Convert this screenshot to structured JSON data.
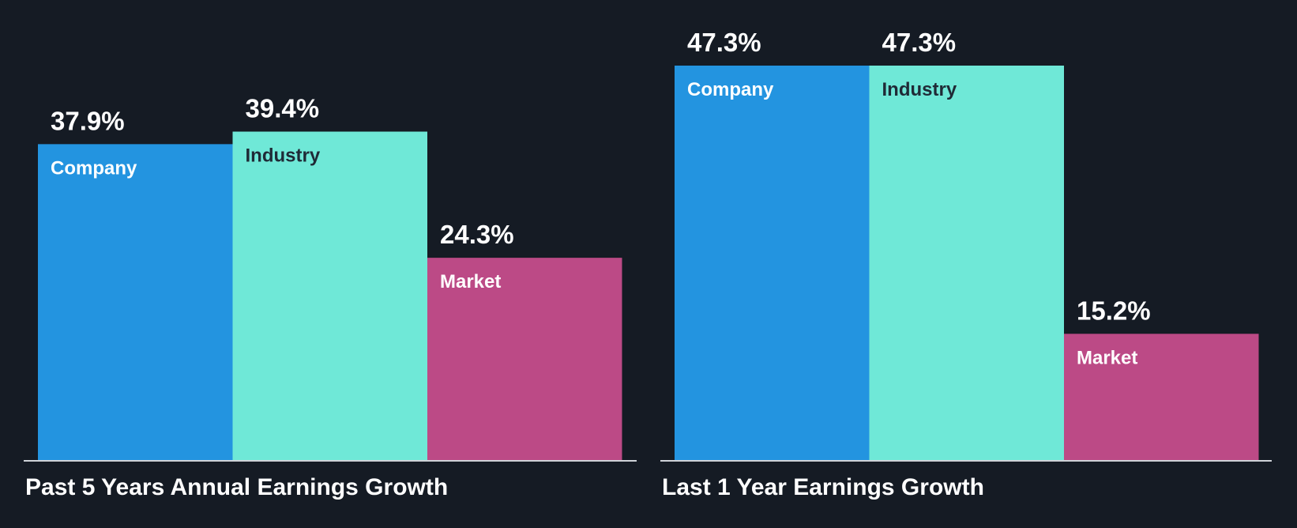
{
  "colors": {
    "background": "#151b24",
    "company": "#2394e0",
    "industry": "#6fe8d7",
    "market": "#bc4a86",
    "baseline": "#cfd3d8",
    "label_on_dark_bar": "#ffffff",
    "label_on_light_bar": "#1f2a36"
  },
  "chart_data": [
    {
      "type": "bar",
      "title": "Past 5 Years Annual Earnings Growth",
      "categories": [
        "Company",
        "Industry",
        "Market"
      ],
      "values": [
        37.9,
        39.4,
        24.3
      ],
      "value_labels": [
        "37.9%",
        "39.4%",
        "24.3%"
      ],
      "unit": "%",
      "ylim": [
        0,
        47.3
      ],
      "grid": false,
      "legend": "none"
    },
    {
      "type": "bar",
      "title": "Last 1 Year Earnings Growth",
      "categories": [
        "Company",
        "Industry",
        "Market"
      ],
      "values": [
        47.3,
        47.3,
        15.2
      ],
      "value_labels": [
        "47.3%",
        "47.3%",
        "15.2%"
      ],
      "unit": "%",
      "ylim": [
        0,
        47.3
      ],
      "grid": false,
      "legend": "none"
    }
  ]
}
